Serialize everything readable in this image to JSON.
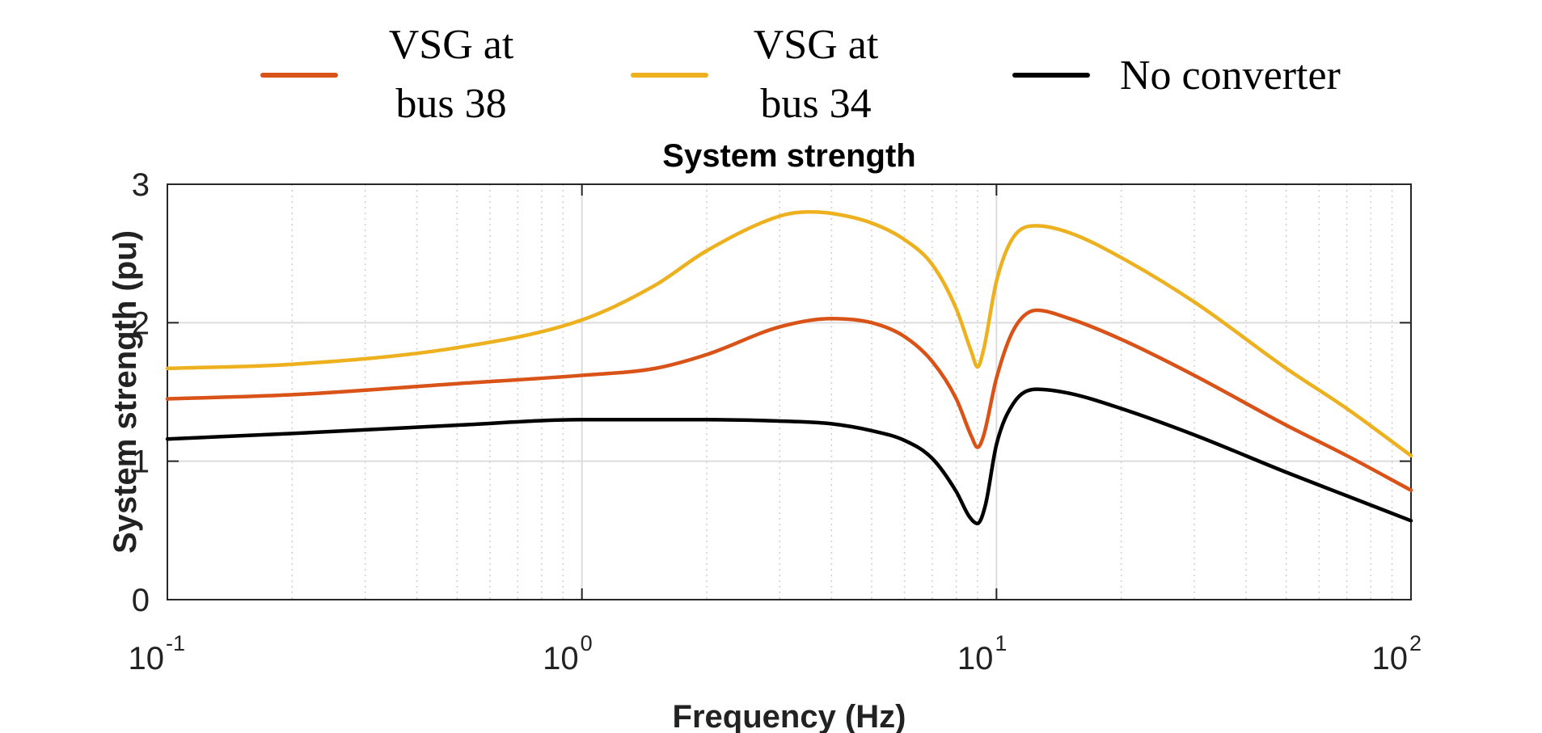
{
  "chart_data": {
    "type": "line",
    "title": "System strength",
    "xlabel": "Frequency (Hz)",
    "ylabel": "System strength (pu)",
    "xscale": "log",
    "xlim": [
      0.1,
      100
    ],
    "ylim": [
      0,
      3
    ],
    "grid": true,
    "legend_position": "top",
    "x_ticks": [
      {
        "base": "10",
        "exp": "-1",
        "value": 0.1
      },
      {
        "base": "10",
        "exp": "0",
        "value": 1
      },
      {
        "base": "10",
        "exp": "1",
        "value": 10
      },
      {
        "base": "10",
        "exp": "2",
        "value": 100
      }
    ],
    "y_ticks": [
      "0",
      "1",
      "2",
      "3"
    ],
    "series": [
      {
        "name": "VSG at bus 38",
        "legend_lines": [
          "VSG at",
          "bus 38"
        ],
        "color": "#D95319",
        "x": [
          0.1,
          0.2,
          0.5,
          1.0,
          1.5,
          2.0,
          3.0,
          4.0,
          5.0,
          6.0,
          7.0,
          8.0,
          8.7,
          9.0,
          9.3,
          10.0,
          11.0,
          12.5,
          15.0,
          20.0,
          30.0,
          50.0,
          70.0,
          100.0
        ],
        "y": [
          1.45,
          1.48,
          1.56,
          1.62,
          1.67,
          1.77,
          1.97,
          2.03,
          2.0,
          1.9,
          1.72,
          1.45,
          1.18,
          1.1,
          1.18,
          1.6,
          1.95,
          2.09,
          2.03,
          1.88,
          1.62,
          1.26,
          1.04,
          0.79
        ]
      },
      {
        "name": "VSG at bus 34",
        "legend_lines": [
          "VSG at",
          "bus 34"
        ],
        "color": "#EDB120",
        "x": [
          0.1,
          0.2,
          0.5,
          1.0,
          1.5,
          2.0,
          3.0,
          3.5,
          4.0,
          5.0,
          6.0,
          7.0,
          8.0,
          8.7,
          9.0,
          9.3,
          10.0,
          11.0,
          12.5,
          15.0,
          20.0,
          30.0,
          50.0,
          70.0,
          100.0
        ],
        "y": [
          1.67,
          1.7,
          1.82,
          2.02,
          2.27,
          2.52,
          2.77,
          2.8,
          2.79,
          2.72,
          2.6,
          2.42,
          2.1,
          1.79,
          1.68,
          1.8,
          2.3,
          2.62,
          2.7,
          2.65,
          2.47,
          2.15,
          1.67,
          1.38,
          1.04
        ]
      },
      {
        "name": "No converter",
        "legend_lines": [
          "No converter"
        ],
        "color": "#000000",
        "x": [
          0.1,
          0.2,
          0.5,
          1.0,
          2.0,
          3.0,
          4.0,
          5.0,
          6.0,
          7.0,
          8.0,
          8.6,
          9.0,
          9.4,
          10.0,
          11.0,
          12.5,
          15.0,
          20.0,
          30.0,
          50.0,
          70.0,
          100.0
        ],
        "y": [
          1.16,
          1.2,
          1.26,
          1.3,
          1.3,
          1.29,
          1.27,
          1.22,
          1.15,
          1.02,
          0.78,
          0.6,
          0.55,
          0.68,
          1.12,
          1.42,
          1.52,
          1.49,
          1.38,
          1.19,
          0.92,
          0.75,
          0.57
        ]
      }
    ]
  }
}
